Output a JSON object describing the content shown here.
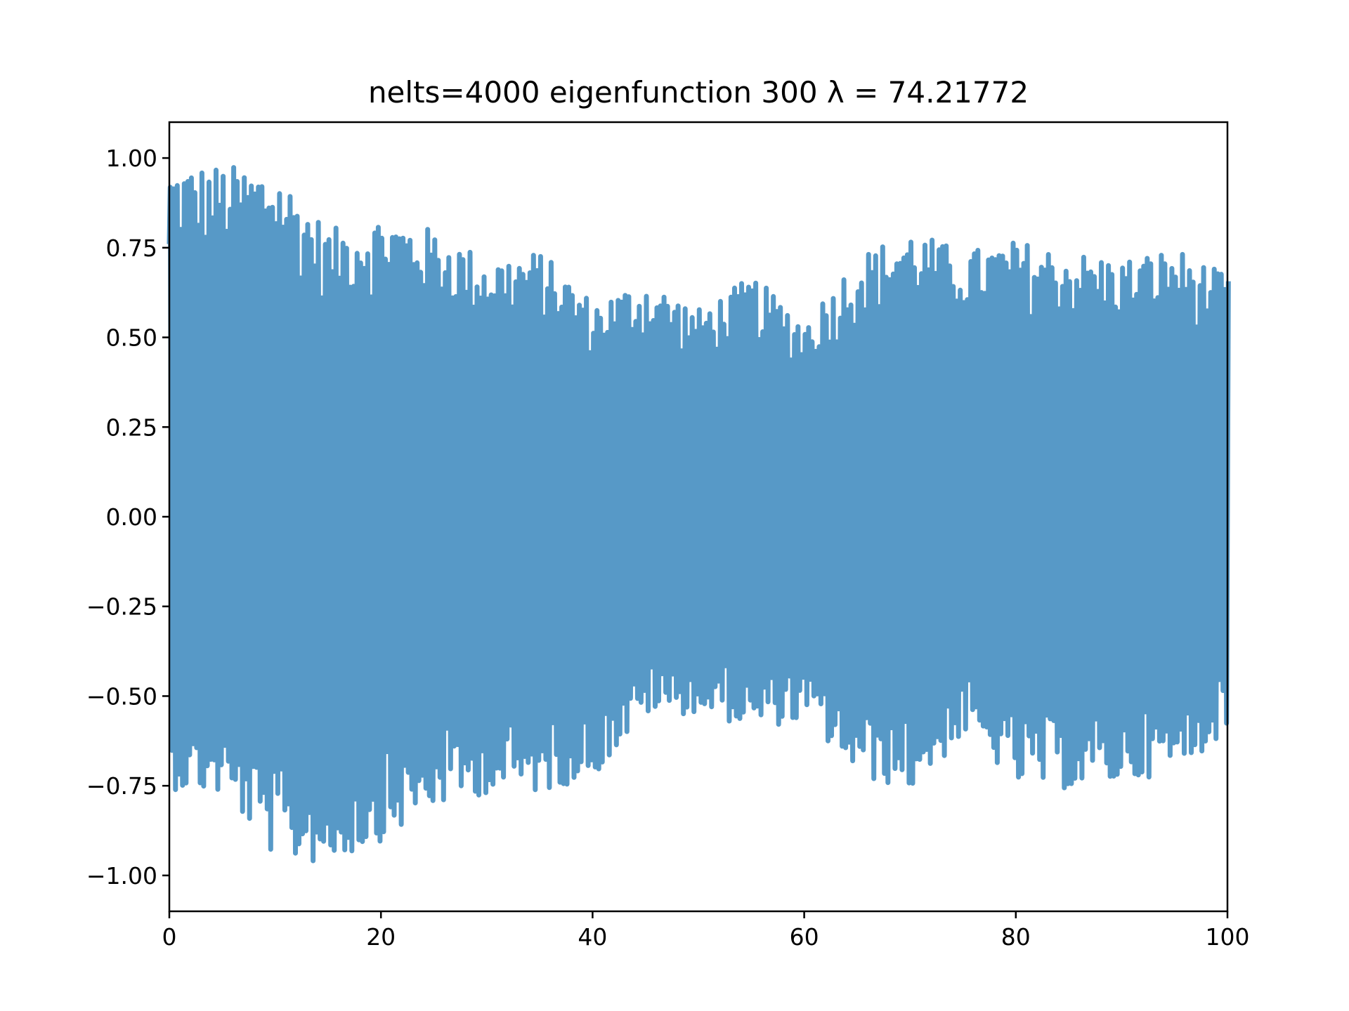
{
  "chart_data": {
    "type": "line",
    "title": "nelts=4000  eigenfunction 300  λ = 74.21772",
    "xlabel": "",
    "ylabel": "",
    "xlim": [
      0,
      100
    ],
    "ylim": [
      -1.1,
      1.1
    ],
    "xticks": [
      0,
      20,
      40,
      60,
      80,
      100
    ],
    "xtick_labels": [
      "0",
      "20",
      "40",
      "60",
      "80",
      "100"
    ],
    "yticks": [
      1.0,
      0.75,
      0.5,
      0.25,
      0.0,
      -0.25,
      -0.5,
      -0.75,
      -1.0
    ],
    "ytick_labels": [
      "1.00",
      "0.75",
      "0.50",
      "0.25",
      "0.00",
      "−0.25",
      "−0.50",
      "−0.75",
      "−1.00"
    ],
    "grid": false,
    "legend": "none",
    "line_color": "#5799c7",
    "series": [
      {
        "description_of_shape": "highly oscillatory eigenfunction on [0,100] with 300 oscillations; amplitude envelope ~1.0 near x=0, decreasing to ~0.5 near x=50, increasing again to ~0.75 near x=90–100",
        "envelope_x": [
          0,
          5,
          10,
          15,
          20,
          25,
          30,
          35,
          40,
          45,
          50,
          55,
          60,
          65,
          70,
          75,
          80,
          85,
          90,
          95,
          100
        ],
        "envelope_upper": [
          0.98,
          0.98,
          0.97,
          0.8,
          0.84,
          0.8,
          0.72,
          0.74,
          0.6,
          0.66,
          0.58,
          0.67,
          0.55,
          0.73,
          0.8,
          0.74,
          0.77,
          0.74,
          0.72,
          0.75,
          0.67
        ],
        "envelope_lower": [
          -0.76,
          -0.78,
          -0.96,
          -0.97,
          -0.9,
          -0.81,
          -0.77,
          -0.77,
          -0.72,
          -0.55,
          -0.55,
          -0.59,
          -0.57,
          -0.73,
          -0.76,
          -0.61,
          -0.75,
          -0.76,
          -0.74,
          -0.71,
          -0.59
        ]
      }
    ]
  }
}
